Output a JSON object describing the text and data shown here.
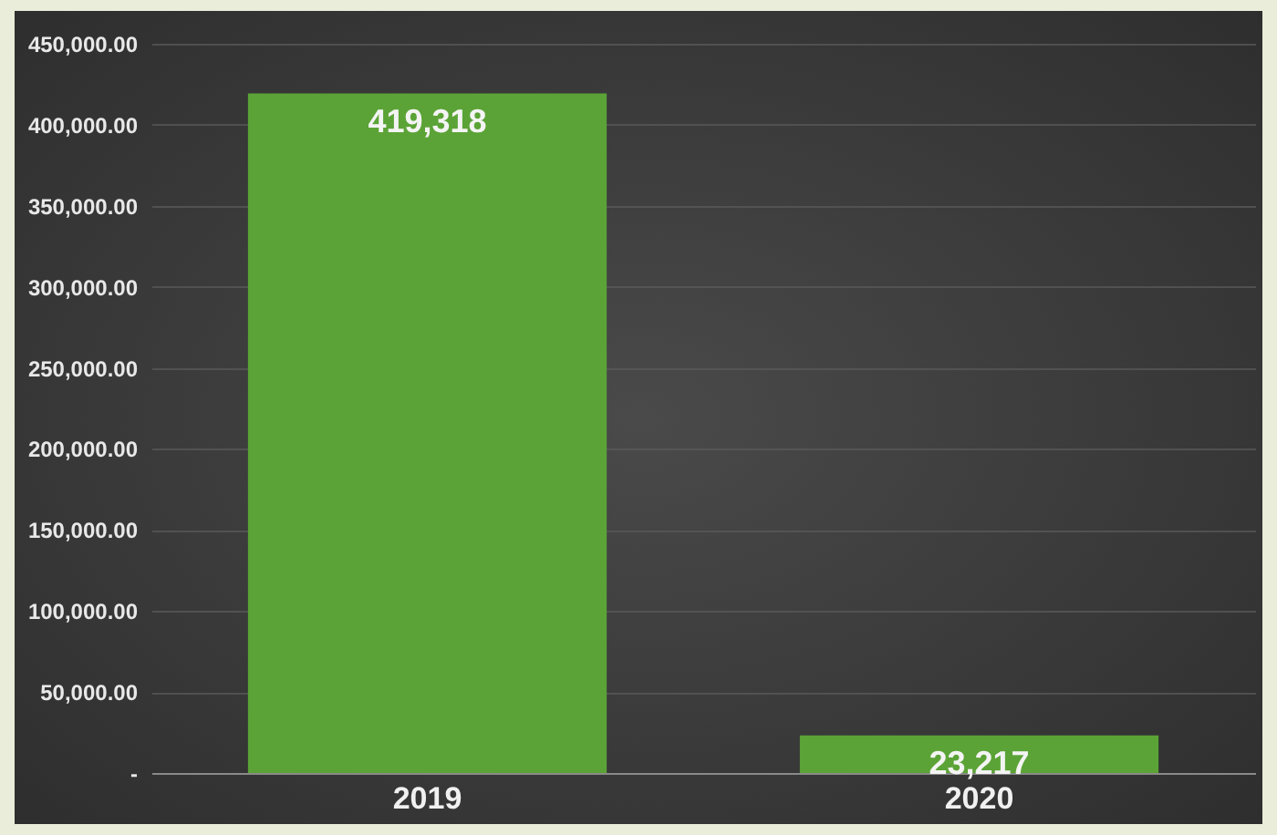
{
  "chart_data": {
    "type": "bar",
    "categories": [
      "2019",
      "2020"
    ],
    "values": [
      419318,
      23217
    ],
    "value_labels": [
      "419,318",
      "23,217"
    ],
    "color": "#5ba336",
    "ylim": [
      0,
      450000
    ],
    "yticks": [
      {
        "value": 0,
        "label": "-"
      },
      {
        "value": 50000,
        "label": "50,000.00"
      },
      {
        "value": 100000,
        "label": "100,000.00"
      },
      {
        "value": 150000,
        "label": "150,000.00"
      },
      {
        "value": 200000,
        "label": "200,000.00"
      },
      {
        "value": 250000,
        "label": "250,000.00"
      },
      {
        "value": 300000,
        "label": "300,000.00"
      },
      {
        "value": 350000,
        "label": "350,000.00"
      },
      {
        "value": 400000,
        "label": "400,000.00"
      },
      {
        "value": 450000,
        "label": "450,000.00"
      }
    ],
    "grid": "y"
  }
}
